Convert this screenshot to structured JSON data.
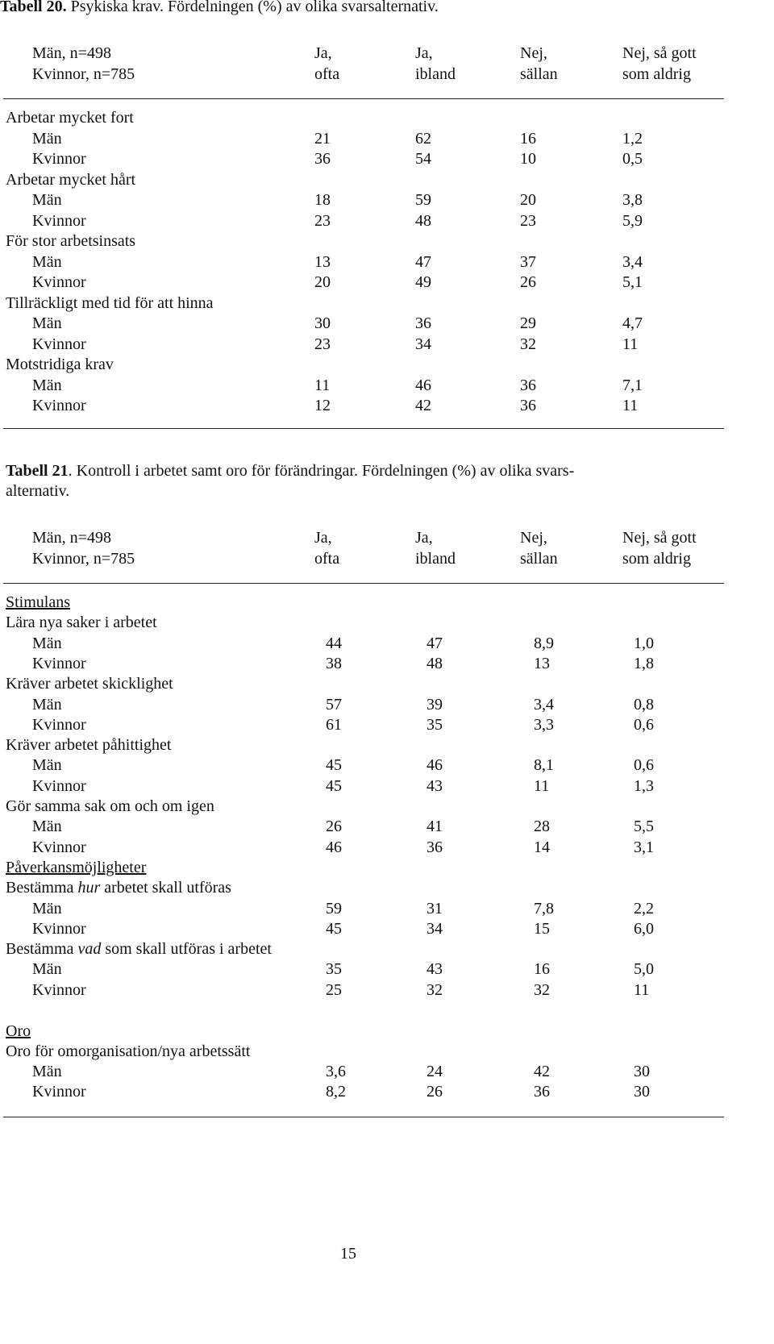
{
  "table20": {
    "caption_num": "Tabell 20.",
    "caption_text": " Psykiska krav. Fördelningen (%) av olika svarsalternativ.",
    "header_left": [
      "Män, n=498",
      "Kvinnor, n=785"
    ],
    "header_cols": [
      [
        "Ja,",
        "ofta"
      ],
      [
        "Ja,",
        "ibland"
      ],
      [
        "Nej,",
        "sällan"
      ],
      [
        "Nej, så gott",
        "som aldrig"
      ]
    ],
    "groups": [
      {
        "label": "Arbetar mycket fort",
        "rows": [
          {
            "label": "Män",
            "values": [
              "21",
              "62",
              "16",
              "1,2"
            ]
          },
          {
            "label": "Kvinnor",
            "values": [
              "36",
              "54",
              "10",
              "0,5"
            ]
          }
        ]
      },
      {
        "label": "Arbetar mycket hårt",
        "rows": [
          {
            "label": "Män",
            "values": [
              "18",
              "59",
              "20",
              "3,8"
            ]
          },
          {
            "label": "Kvinnor",
            "values": [
              "23",
              "48",
              "23",
              "5,9"
            ]
          }
        ]
      },
      {
        "label": "För stor arbetsinsats",
        "rows": [
          {
            "label": "Män",
            "values": [
              "13",
              "47",
              "37",
              "3,4"
            ]
          },
          {
            "label": "Kvinnor",
            "values": [
              "20",
              "49",
              "26",
              "5,1"
            ]
          }
        ]
      },
      {
        "label": "Tillräckligt med tid för att hinna",
        "rows": [
          {
            "label": "Män",
            "values": [
              "30",
              "36",
              "29",
              "4,7"
            ]
          },
          {
            "label": "Kvinnor",
            "values": [
              "23",
              "34",
              "32",
              "11"
            ]
          }
        ]
      },
      {
        "label": "Motstridiga krav",
        "rows": [
          {
            "label": "Män",
            "values": [
              "11",
              "46",
              "36",
              "7,1"
            ]
          },
          {
            "label": "Kvinnor",
            "values": [
              "12",
              "42",
              "36",
              "11"
            ]
          }
        ]
      }
    ]
  },
  "table21": {
    "caption_num": "Tabell 21",
    "caption_line1": ". Kontroll i arbetet samt oro för förändringar. Fördelningen (%) av olika svars-",
    "caption_line2": "alternativ.",
    "header_left": [
      "Män, n=498",
      "Kvinnor, n=785"
    ],
    "header_cols": [
      [
        "Ja,",
        "ofta"
      ],
      [
        "Ja,",
        "ibland"
      ],
      [
        "Nej,",
        "sällan"
      ],
      [
        "Nej, så gott",
        "som aldrig"
      ]
    ],
    "sections": [
      {
        "title": "Stimulans",
        "groups": [
          {
            "label": "Lära nya saker i arbetet",
            "rows": [
              {
                "label": "Män",
                "values": [
                  "44",
                  "47",
                  "8,9",
                  "1,0"
                ]
              },
              {
                "label": "Kvinnor",
                "values": [
                  "38",
                  "48",
                  "13",
                  "1,8"
                ]
              }
            ]
          },
          {
            "label": "Kräver arbetet skicklighet",
            "rows": [
              {
                "label": "Män",
                "values": [
                  "57",
                  "39",
                  "3,4",
                  "0,8"
                ]
              },
              {
                "label": "Kvinnor",
                "values": [
                  "61",
                  "35",
                  "3,3",
                  "0,6"
                ]
              }
            ]
          },
          {
            "label": "Kräver arbetet påhittighet",
            "rows": [
              {
                "label": "Män",
                "values": [
                  "45",
                  "46",
                  "8,1",
                  "0,6"
                ]
              },
              {
                "label": "Kvinnor",
                "values": [
                  "45",
                  "43",
                  "11",
                  "1,3"
                ]
              }
            ]
          },
          {
            "label": "Gör samma sak om och om igen",
            "rows": [
              {
                "label": "Män",
                "values": [
                  "26",
                  "41",
                  "28",
                  "5,5"
                ]
              },
              {
                "label": "Kvinnor",
                "values": [
                  "46",
                  "36",
                  "14",
                  "3,1"
                ]
              }
            ]
          }
        ]
      },
      {
        "title": "Påverkansmöjligheter",
        "groups": [
          {
            "label_pre": "Bestämma ",
            "label_em": "hur",
            "label_post": " arbetet skall utföras",
            "rows": [
              {
                "label": "Män",
                "values": [
                  "59",
                  "31",
                  "7,8",
                  "2,2"
                ]
              },
              {
                "label": "Kvinnor",
                "values": [
                  "45",
                  "34",
                  "15",
                  "6,0"
                ]
              }
            ]
          },
          {
            "label_pre": "Bestämma ",
            "label_em": "vad",
            "label_post": " som skall utföras i arbetet",
            "rows": [
              {
                "label": "Män",
                "values": [
                  "35",
                  "43",
                  "16",
                  "5,0"
                ]
              },
              {
                "label": "Kvinnor",
                "values": [
                  "25",
                  "32",
                  "32",
                  "11"
                ]
              }
            ]
          }
        ]
      },
      {
        "title": "Oro",
        "groups": [
          {
            "label": "Oro för omorganisation/nya arbetssätt",
            "rows": [
              {
                "label": "Män",
                "values": [
                  "3,6",
                  "24",
                  "42",
                  "30"
                ]
              },
              {
                "label": "Kvinnor",
                "values": [
                  "8,2",
                  "26",
                  "36",
                  "30"
                ]
              }
            ]
          }
        ]
      }
    ]
  },
  "page_number": "15"
}
